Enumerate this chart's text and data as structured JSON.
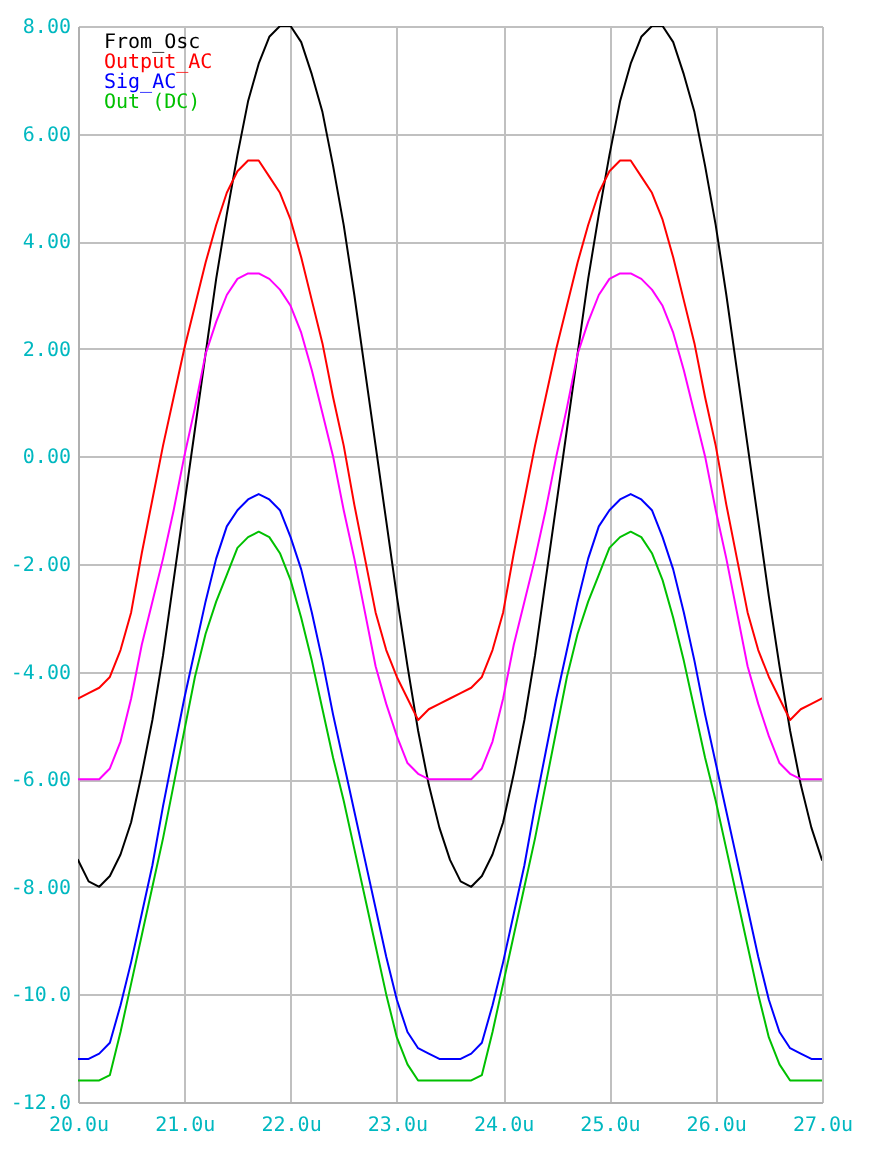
{
  "chart_data": {
    "type": "line",
    "x": [
      20,
      20.1,
      20.2,
      20.3,
      20.4,
      20.5,
      20.6,
      20.7,
      20.8,
      20.9,
      21,
      21.1,
      21.2,
      21.3,
      21.4,
      21.5,
      21.6,
      21.7,
      21.8,
      21.9,
      22,
      22.1,
      22.2,
      22.3,
      22.4,
      22.5,
      22.6,
      22.7,
      22.8,
      22.9,
      23,
      23.1,
      23.2,
      23.3,
      23.4,
      23.5,
      23.6,
      23.7,
      23.8,
      23.9,
      24,
      24.1,
      24.2,
      24.3,
      24.4,
      24.5,
      24.6,
      24.7,
      24.8,
      24.9,
      25,
      25.1,
      25.2,
      25.3,
      25.4,
      25.5,
      25.6,
      25.7,
      25.8,
      25.9,
      26,
      26.1,
      26.2,
      26.3,
      26.4,
      26.5,
      26.6,
      26.7,
      26.8,
      26.9,
      27
    ],
    "series": [
      {
        "name": "From_Osc",
        "color": "#000000",
        "values": [
          -7.5,
          -7.9,
          -8.0,
          -7.8,
          -7.4,
          -6.8,
          -5.9,
          -4.9,
          -3.7,
          -2.3,
          -0.9,
          0.5,
          1.9,
          3.3,
          4.5,
          5.6,
          6.6,
          7.3,
          7.8,
          8.0,
          8.0,
          7.7,
          7.1,
          6.4,
          5.4,
          4.3,
          3.0,
          1.6,
          0.2,
          -1.2,
          -2.6,
          -3.9,
          -5.1,
          -6.1,
          -6.9,
          -7.5,
          -7.9,
          -8.0,
          -7.8,
          -7.4,
          -6.8,
          -5.9,
          -4.9,
          -3.7,
          -2.3,
          -0.9,
          0.5,
          1.9,
          3.3,
          4.5,
          5.6,
          6.6,
          7.3,
          7.8,
          8.0,
          8.0,
          7.7,
          7.1,
          6.4,
          5.4,
          4.3,
          3.0,
          1.6,
          0.2,
          -1.2,
          -2.6,
          -3.9,
          -5.1,
          -6.1,
          -6.9,
          -7.5
        ]
      },
      {
        "name": "Output_AC",
        "color": "#ff0000",
        "values": [
          -4.5,
          -4.4,
          -4.3,
          -4.1,
          -3.6,
          -2.9,
          -1.8,
          -0.8,
          0.2,
          1.1,
          2.0,
          2.8,
          3.6,
          4.3,
          4.9,
          5.3,
          5.5,
          5.5,
          5.2,
          4.9,
          4.4,
          3.7,
          2.9,
          2.1,
          1.1,
          0.2,
          -0.9,
          -1.9,
          -2.9,
          -3.6,
          -4.1,
          -4.5,
          -4.9,
          -4.7,
          -4.6,
          -4.5,
          -4.4,
          -4.3,
          -4.1,
          -3.6,
          -2.9,
          -1.8,
          -0.8,
          0.2,
          1.1,
          2.0,
          2.8,
          3.6,
          4.3,
          4.9,
          5.3,
          5.5,
          5.5,
          5.2,
          4.9,
          4.4,
          3.7,
          2.9,
          2.1,
          1.1,
          0.2,
          -0.9,
          -1.9,
          -2.9,
          -3.6,
          -4.1,
          -4.5,
          -4.9,
          -4.7,
          -4.6,
          -4.5
        ]
      },
      {
        "name": "Sig_AC",
        "color": "#0000ff",
        "values": [
          -11.2,
          -11.2,
          -11.1,
          -10.9,
          -10.2,
          -9.4,
          -8.5,
          -7.6,
          -6.5,
          -5.5,
          -4.5,
          -3.6,
          -2.7,
          -1.9,
          -1.3,
          -1.0,
          -0.8,
          -0.7,
          -0.8,
          -1.0,
          -1.5,
          -2.1,
          -2.9,
          -3.8,
          -4.8,
          -5.7,
          -6.6,
          -7.5,
          -8.4,
          -9.3,
          -10.1,
          -10.7,
          -11.0,
          -11.1,
          -11.2,
          -11.2,
          -11.2,
          -11.1,
          -10.9,
          -10.2,
          -9.4,
          -8.5,
          -7.6,
          -6.5,
          -5.5,
          -4.5,
          -3.6,
          -2.7,
          -1.9,
          -1.3,
          -1.0,
          -0.8,
          -0.7,
          -0.8,
          -1.0,
          -1.5,
          -2.1,
          -2.9,
          -3.8,
          -4.8,
          -5.7,
          -6.6,
          -7.5,
          -8.4,
          -9.3,
          -10.1,
          -10.7,
          -11.0,
          -11.1,
          -11.2,
          -11.2
        ]
      },
      {
        "name": "Out (DC)",
        "color": "#00c000",
        "values": [
          -11.6,
          -11.6,
          -11.6,
          -11.5,
          -10.7,
          -9.8,
          -8.9,
          -8.0,
          -7.1,
          -6.1,
          -5.1,
          -4.1,
          -3.3,
          -2.7,
          -2.2,
          -1.7,
          -1.5,
          -1.4,
          -1.5,
          -1.8,
          -2.3,
          -3.0,
          -3.8,
          -4.7,
          -5.6,
          -6.4,
          -7.3,
          -8.2,
          -9.1,
          -10.0,
          -10.8,
          -11.3,
          -11.6,
          -11.6,
          -11.6,
          -11.6,
          -11.6,
          -11.6,
          -11.5,
          -10.7,
          -9.8,
          -8.9,
          -8.0,
          -7.1,
          -6.1,
          -5.1,
          -4.1,
          -3.3,
          -2.7,
          -2.2,
          -1.7,
          -1.5,
          -1.4,
          -1.5,
          -1.8,
          -2.3,
          -3.0,
          -3.8,
          -4.7,
          -5.6,
          -6.4,
          -7.3,
          -8.2,
          -9.1,
          -10.0,
          -10.8,
          -11.3,
          -11.6,
          -11.6,
          -11.6,
          -11.6
        ]
      },
      {
        "color": "#ff00ff",
        "values": [
          -6.0,
          -6.0,
          -6.0,
          -5.8,
          -5.3,
          -4.5,
          -3.5,
          -2.7,
          -1.9,
          -1.0,
          0.0,
          0.9,
          1.9,
          2.5,
          3.0,
          3.3,
          3.4,
          3.4,
          3.3,
          3.1,
          2.8,
          2.3,
          1.6,
          0.8,
          0.0,
          -1.0,
          -1.9,
          -2.9,
          -3.9,
          -4.6,
          -5.2,
          -5.7,
          -5.9,
          -6.0,
          -6.0,
          -6.0,
          -6.0,
          -6.0,
          -5.8,
          -5.3,
          -4.5,
          -3.5,
          -2.7,
          -1.9,
          -1.0,
          0.0,
          0.9,
          1.9,
          2.5,
          3.0,
          3.3,
          3.4,
          3.4,
          3.3,
          3.1,
          2.8,
          2.3,
          1.6,
          0.8,
          0.0,
          -1.0,
          -1.9,
          -2.9,
          -3.9,
          -4.6,
          -5.2,
          -5.7,
          -5.9,
          -6.0,
          -6.0,
          -6.0
        ]
      }
    ],
    "xlim": [
      20,
      27
    ],
    "ylim": [
      -12,
      8
    ],
    "xticks": [
      {
        "value": 20,
        "label": "20.0u"
      },
      {
        "value": 21,
        "label": "21.0u"
      },
      {
        "value": 22,
        "label": "22.0u"
      },
      {
        "value": 23,
        "label": "23.0u"
      },
      {
        "value": 24,
        "label": "24.0u"
      },
      {
        "value": 25,
        "label": "25.0u"
      },
      {
        "value": 26,
        "label": "26.0u"
      },
      {
        "value": 27,
        "label": "27.0u"
      }
    ],
    "yticks": [
      {
        "value": 8,
        "label": "8.00"
      },
      {
        "value": 6,
        "label": "6.00"
      },
      {
        "value": 4,
        "label": "4.00"
      },
      {
        "value": 2,
        "label": "2.00"
      },
      {
        "value": 0,
        "label": "0.00"
      },
      {
        "value": -2,
        "label": "-2.00"
      },
      {
        "value": -4,
        "label": "-4.00"
      },
      {
        "value": -6,
        "label": "-6.00"
      },
      {
        "value": -8,
        "label": "-8.00"
      },
      {
        "value": -10,
        "label": "-10.0"
      },
      {
        "value": -12,
        "label": "-12.0"
      }
    ],
    "grid": true,
    "legend": "top left"
  }
}
